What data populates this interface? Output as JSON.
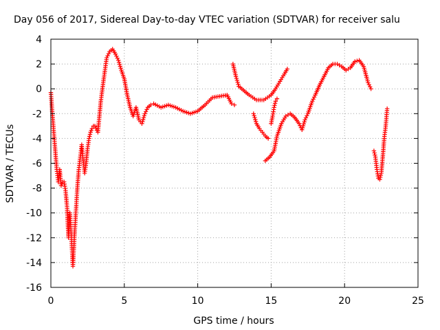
{
  "chart_data": {
    "type": "scatter",
    "title": "Day 056 of 2017, Sidereal Day-to-day VTEC variation (SDTVAR) for receiver salu",
    "xlabel": "GPS time / hours",
    "ylabel": "SDTVAR / TECUs",
    "xlim": [
      0,
      25
    ],
    "ylim": [
      -16,
      4
    ],
    "xticks": [
      0,
      5,
      10,
      15,
      20,
      25
    ],
    "yticks": [
      -16,
      -14,
      -12,
      -10,
      -8,
      -6,
      -4,
      -2,
      0,
      2,
      4
    ],
    "xtick_labels": [
      "0",
      "5",
      "10",
      "15",
      "20",
      "25"
    ],
    "ytick_labels": [
      "-16",
      "-14",
      "-12",
      "-10",
      "-8",
      "-6",
      "-4",
      "-2",
      "0",
      "2",
      "4"
    ],
    "grid": true,
    "marker": "+",
    "color": "#ff0000",
    "series": [
      {
        "name": "segment-1",
        "x": [
          0.0,
          0.1,
          0.2,
          0.3,
          0.4,
          0.5,
          0.6,
          0.7,
          0.8,
          0.9,
          1.0,
          1.1,
          1.2,
          1.3,
          1.4,
          1.5,
          1.6,
          1.7,
          1.8,
          1.9,
          2.0,
          2.1,
          2.2,
          2.3,
          2.4,
          2.5,
          2.6,
          2.7,
          2.8,
          2.9,
          3.0,
          3.2,
          3.4,
          3.6,
          3.8,
          4.0,
          4.2,
          4.4,
          4.6,
          4.8,
          5.0,
          5.2,
          5.4,
          5.6,
          5.8,
          6.0,
          6.2,
          6.4,
          6.6,
          6.8,
          7.0,
          7.5,
          8.0,
          8.5,
          9.0,
          9.5,
          10.0,
          10.5,
          11.0,
          11.5,
          12.0,
          12.3,
          12.5
        ],
        "y": [
          -0.3,
          -2.0,
          -3.5,
          -5.0,
          -6.5,
          -7.5,
          -6.5,
          -7.8,
          -7.5,
          -7.5,
          -8.2,
          -9.5,
          -12.0,
          -10.0,
          -12.0,
          -14.3,
          -12.0,
          -10.0,
          -8.0,
          -6.5,
          -5.5,
          -4.5,
          -5.8,
          -6.8,
          -6.0,
          -4.8,
          -4.0,
          -3.5,
          -3.2,
          -3.0,
          -3.0,
          -3.5,
          -1.0,
          0.8,
          2.5,
          3.0,
          3.2,
          2.8,
          2.3,
          1.5,
          0.8,
          -0.5,
          -1.5,
          -2.2,
          -1.5,
          -2.5,
          -2.8,
          -2.0,
          -1.5,
          -1.3,
          -1.2,
          -1.5,
          -1.3,
          -1.5,
          -1.8,
          -2.0,
          -1.8,
          -1.3,
          -0.7,
          -0.6,
          -0.5,
          -1.2,
          -1.3
        ]
      },
      {
        "name": "segment-2",
        "x": [
          12.4,
          12.6,
          12.8,
          13.0,
          13.5,
          14.0,
          14.5,
          15.0,
          15.3,
          15.6,
          15.9,
          16.1
        ],
        "y": [
          2.0,
          1.0,
          0.2,
          0.0,
          -0.5,
          -0.9,
          -0.9,
          -0.5,
          0.0,
          0.6,
          1.2,
          1.6
        ]
      },
      {
        "name": "segment-3",
        "x": [
          13.8,
          14.0,
          14.2,
          14.4,
          14.6,
          14.8
        ],
        "y": [
          -2.0,
          -2.8,
          -3.2,
          -3.5,
          -3.8,
          -4.0
        ]
      },
      {
        "name": "segment-4",
        "x": [
          14.6,
          14.9,
          15.2,
          15.4,
          15.7,
          16.0,
          16.3,
          16.6,
          16.9,
          17.1,
          17.3,
          17.5,
          17.8,
          18.0,
          18.3,
          18.6,
          18.9,
          19.2,
          19.5,
          19.8,
          20.1,
          20.4,
          20.7,
          21.0,
          21.3,
          21.6,
          21.8
        ],
        "y": [
          -5.8,
          -5.5,
          -5.0,
          -3.8,
          -2.8,
          -2.2,
          -2.0,
          -2.3,
          -2.8,
          -3.3,
          -2.5,
          -2.0,
          -1.0,
          -0.5,
          0.3,
          1.0,
          1.7,
          2.0,
          2.0,
          1.8,
          1.5,
          1.7,
          2.2,
          2.3,
          1.8,
          0.5,
          0.0
        ]
      },
      {
        "name": "segment-5",
        "x": [
          15.0,
          15.1,
          15.2,
          15.3,
          15.4
        ],
        "y": [
          -2.8,
          -2.2,
          -1.5,
          -1.0,
          -0.8
        ]
      },
      {
        "name": "segment-6",
        "x": [
          22.0,
          22.1,
          22.2,
          22.3,
          22.4,
          22.5,
          22.6,
          22.7,
          22.8,
          22.9
        ],
        "y": [
          -5.0,
          -5.5,
          -6.5,
          -7.2,
          -7.3,
          -6.8,
          -5.5,
          -4.0,
          -3.0,
          -1.6
        ]
      }
    ]
  }
}
